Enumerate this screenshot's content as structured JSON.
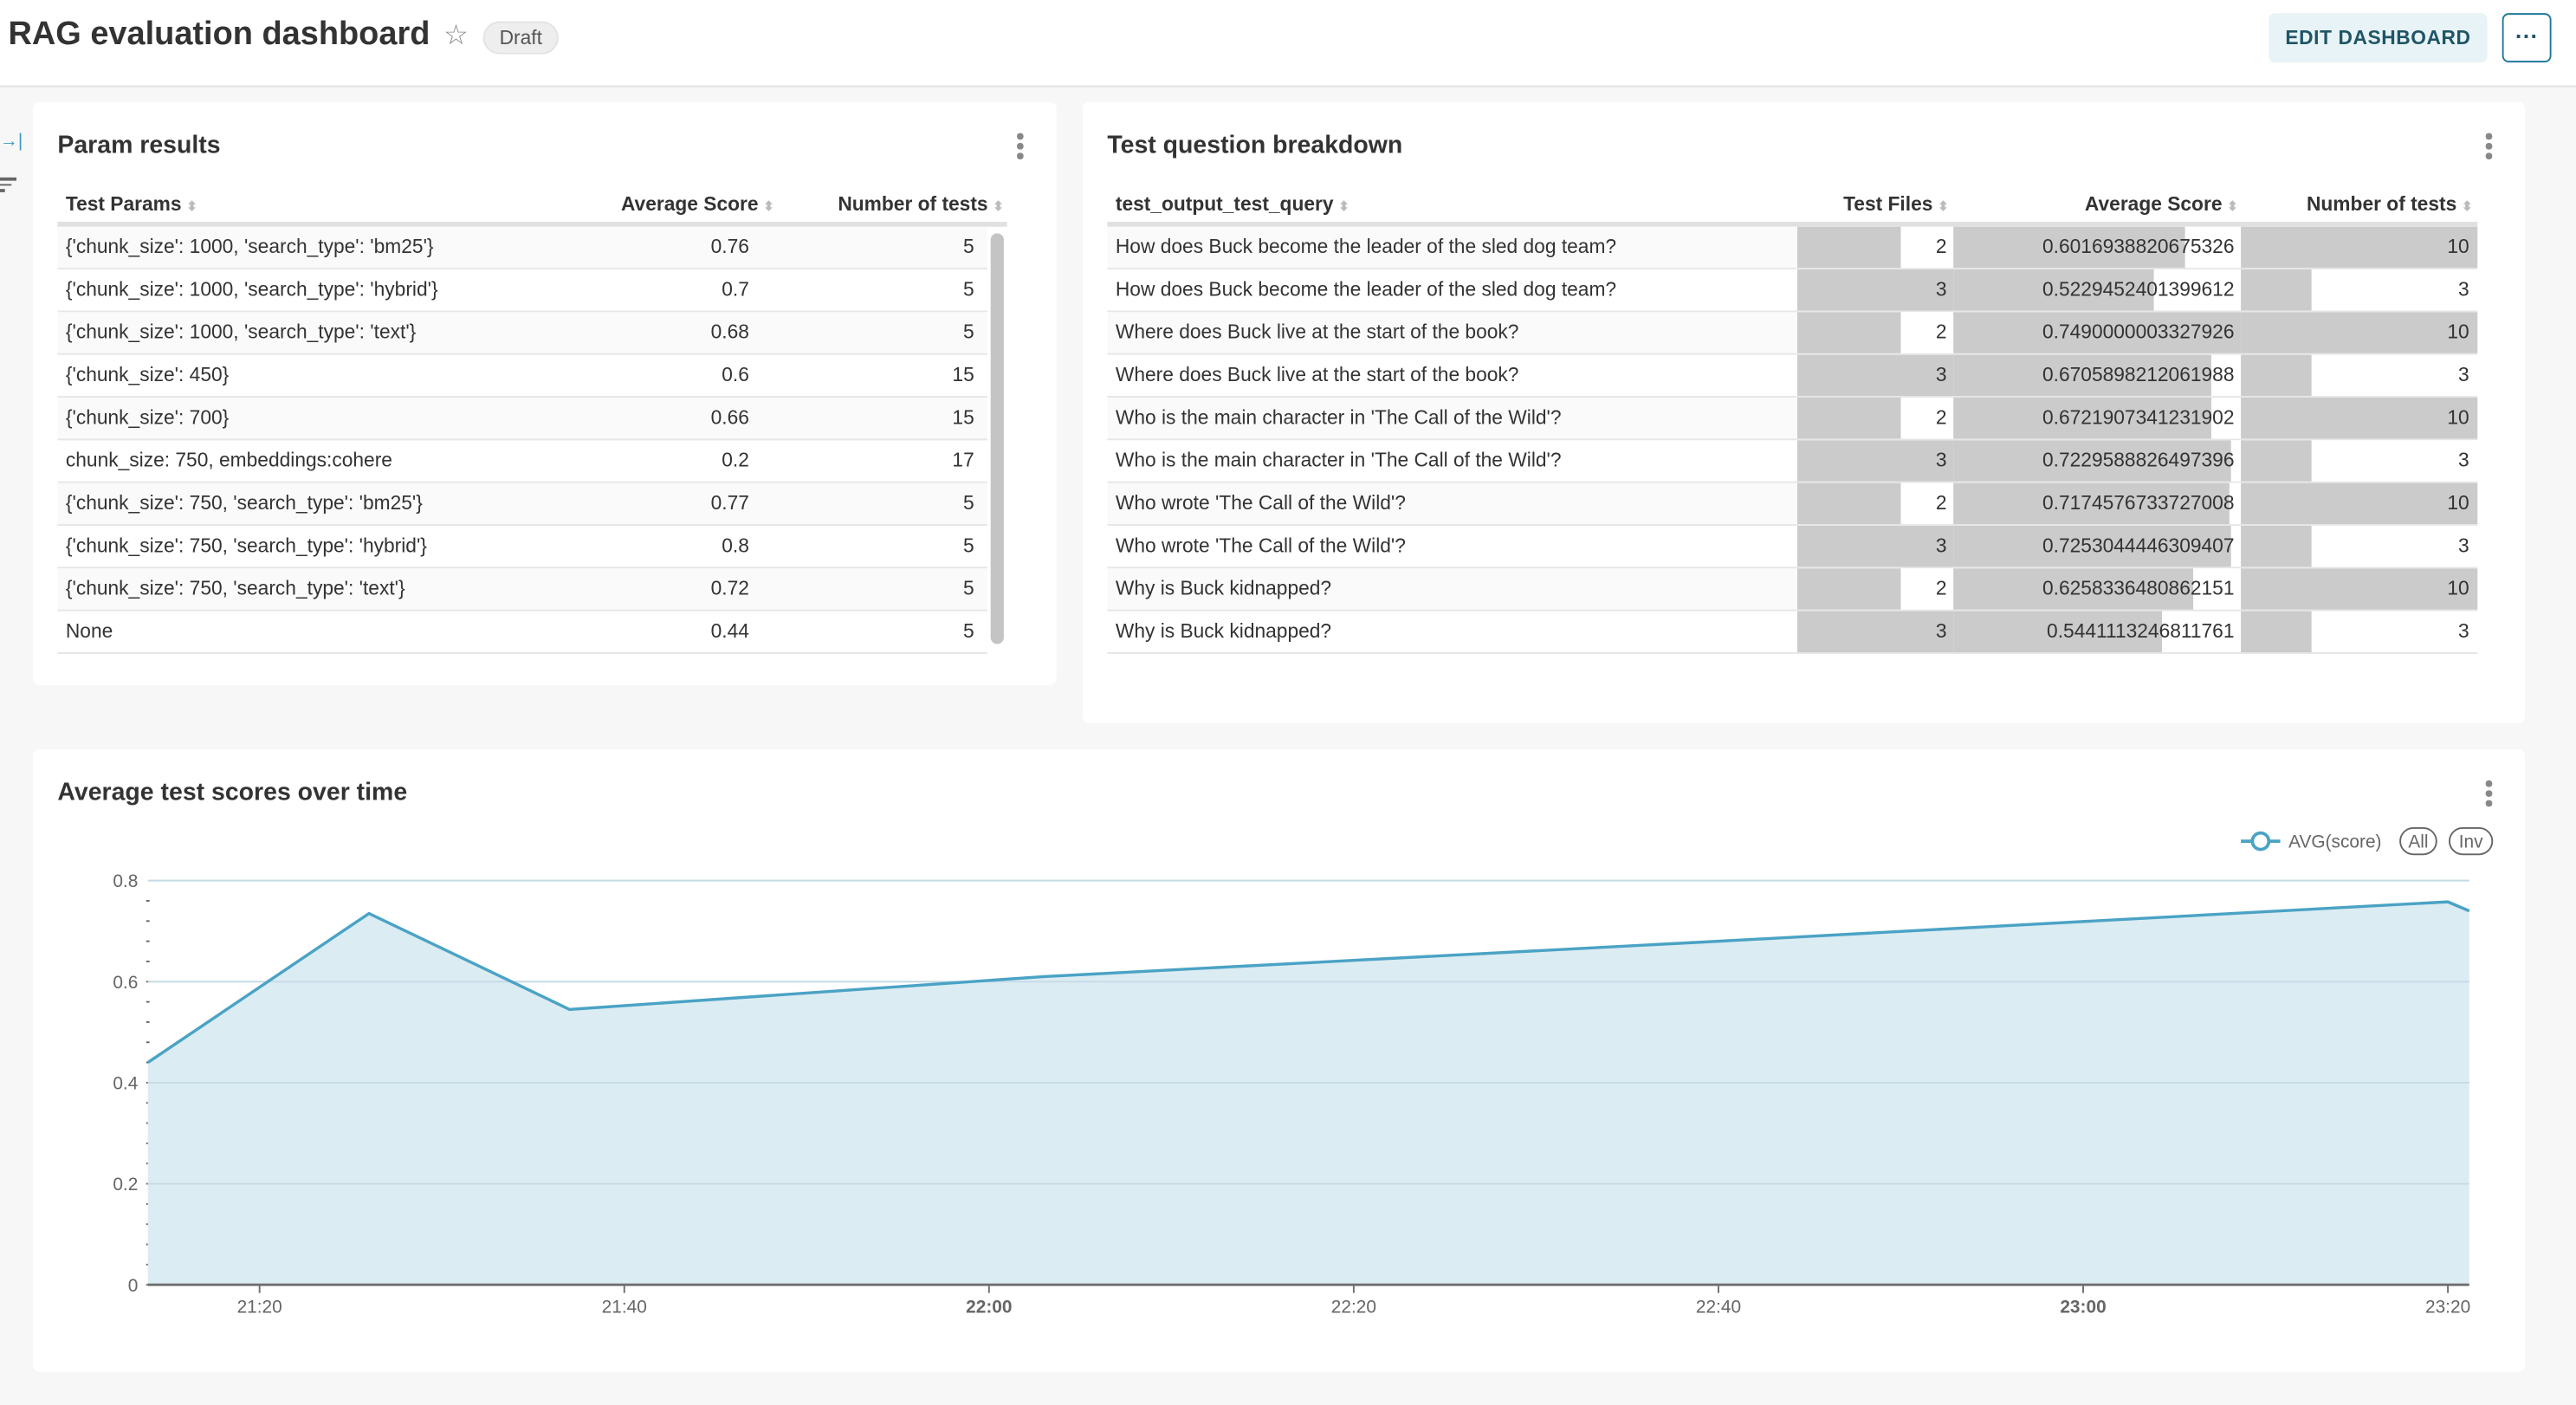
{
  "header": {
    "title": "RAG evaluation dashboard",
    "status_badge": "Draft",
    "edit_button": "EDIT DASHBOARD",
    "more_button": "···",
    "star_icon": "star-outline-icon"
  },
  "param_results": {
    "title": "Param results",
    "columns": [
      "Test Params",
      "Average Score",
      "Number of tests"
    ],
    "rows": [
      {
        "params": "{'chunk_size': 1000, 'search_type': 'bm25'}",
        "avg": "0.76",
        "n": "5"
      },
      {
        "params": "{'chunk_size': 1000, 'search_type': 'hybrid'}",
        "avg": "0.7",
        "n": "5"
      },
      {
        "params": "{'chunk_size': 1000, 'search_type': 'text'}",
        "avg": "0.68",
        "n": "5"
      },
      {
        "params": "{'chunk_size': 450}",
        "avg": "0.6",
        "n": "15"
      },
      {
        "params": "{'chunk_size': 700}",
        "avg": "0.66",
        "n": "15"
      },
      {
        "params": "chunk_size: 750, embeddings:cohere",
        "avg": "0.2",
        "n": "17"
      },
      {
        "params": "{'chunk_size': 750, 'search_type': 'bm25'}",
        "avg": "0.77",
        "n": "5"
      },
      {
        "params": "{'chunk_size': 750, 'search_type': 'hybrid'}",
        "avg": "0.8",
        "n": "5"
      },
      {
        "params": "{'chunk_size': 750, 'search_type': 'text'}",
        "avg": "0.72",
        "n": "5"
      },
      {
        "params": "None",
        "avg": "0.44",
        "n": "5"
      }
    ]
  },
  "question_breakdown": {
    "title": "Test question breakdown",
    "columns": [
      "test_output_test_query",
      "Test Files",
      "Average Score",
      "Number of tests"
    ],
    "rows": [
      {
        "q": "How does Buck become the leader of the sled dog team?",
        "files": "2",
        "avg": "0.6016938820675326",
        "n": "10"
      },
      {
        "q": "How does Buck become the leader of the sled dog team?",
        "files": "3",
        "avg": "0.5229452401399612",
        "n": "3"
      },
      {
        "q": "Where does Buck live at the start of the book?",
        "files": "2",
        "avg": "0.7490000003327926",
        "n": "10"
      },
      {
        "q": "Where does Buck live at the start of the book?",
        "files": "3",
        "avg": "0.6705898212061988",
        "n": "3"
      },
      {
        "q": "Who is the main character in 'The Call of the Wild'?",
        "files": "2",
        "avg": "0.6721907341231902",
        "n": "10"
      },
      {
        "q": "Who is the main character in 'The Call of the Wild'?",
        "files": "3",
        "avg": "0.7229588826497396",
        "n": "3"
      },
      {
        "q": "Who wrote 'The Call of the Wild'?",
        "files": "2",
        "avg": "0.7174576733727008",
        "n": "10"
      },
      {
        "q": "Who wrote 'The Call of the Wild'?",
        "files": "3",
        "avg": "0.7253044446309407",
        "n": "3"
      },
      {
        "q": "Why is Buck kidnapped?",
        "files": "2",
        "avg": "0.6258336480862151",
        "n": "10"
      },
      {
        "q": "Why is Buck kidnapped?",
        "files": "3",
        "avg": "0.5441113246811761",
        "n": "3"
      }
    ]
  },
  "chart_panel": {
    "title": "Average test scores over time",
    "legend_all": "All",
    "legend_inv": "Inv"
  },
  "chart_data": {
    "type": "area",
    "title": "Average test scores over time",
    "series": [
      {
        "name": "AVG(score)",
        "color": "#4aa3c5",
        "x": [
          "21:14",
          "21:26",
          "21:37",
          "22:03",
          "22:40",
          "23:20",
          "23:21"
        ],
        "y": [
          0.44,
          0.735,
          0.545,
          0.61,
          0.68,
          0.758,
          0.74
        ]
      }
    ],
    "xticks": [
      "21:20",
      "21:40",
      "22:00",
      "22:20",
      "22:40",
      "23:00",
      "23:20"
    ],
    "bold_xticks": [
      "22:00",
      "23:00"
    ],
    "yticks": [
      "0",
      "0.2",
      "0.4",
      "0.6",
      "0.8"
    ],
    "ylim": [
      0,
      0.8
    ],
    "xlim": [
      "21:14",
      "23:21"
    ],
    "grid": true,
    "legend": "top-right"
  }
}
